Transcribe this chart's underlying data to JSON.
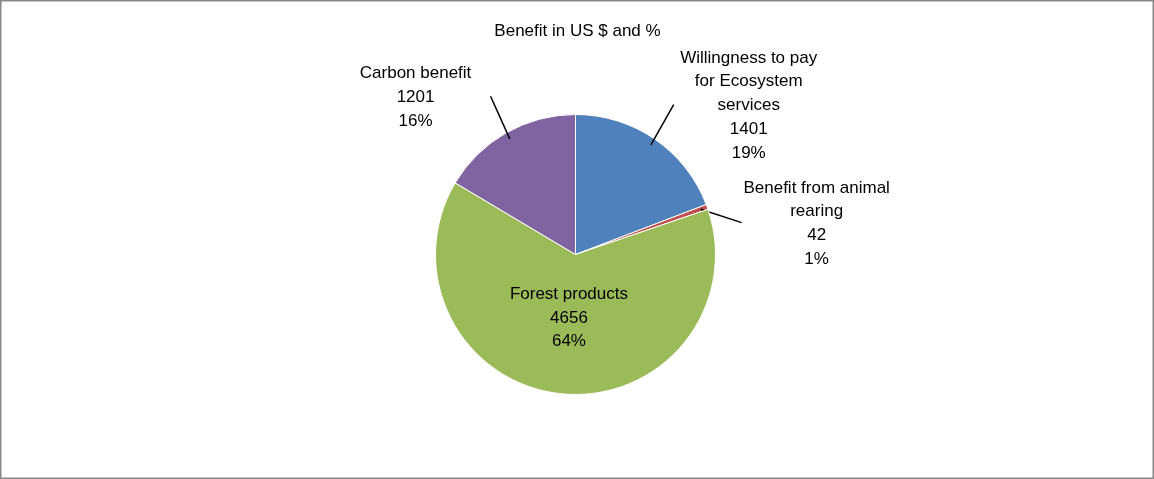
{
  "chart_data": {
    "type": "pie",
    "title": "Benefit in US $ and %",
    "categories": [
      "Willingness to pay for Ecosystem services",
      "Benefit from animal rearing",
      "Forest products",
      "Carbon benefit"
    ],
    "values": [
      1401,
      42,
      4656,
      1201
    ],
    "colors": [
      "#4f81bd",
      "#c0504d",
      "#9bbb59",
      "#8064a2"
    ],
    "value_labels": [
      "1401\n19%",
      "42\n1%",
      "4656\n64%",
      "1201\n16%"
    ]
  }
}
